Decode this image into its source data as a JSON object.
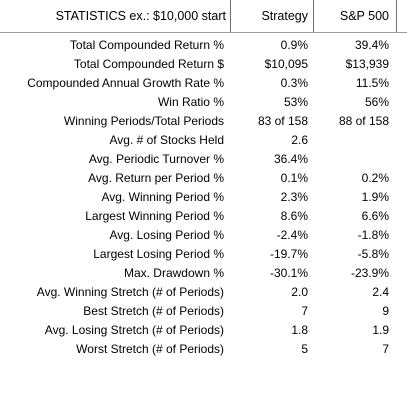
{
  "header": {
    "label": "STATISTICS  ex.: $10,000 start",
    "strategy": "Strategy",
    "sp500": "S&P 500"
  },
  "rows": [
    {
      "label": "Total Compounded Return %",
      "strategy": "0.9%",
      "sp500": "39.4%"
    },
    {
      "label": "Total Compounded Return $",
      "strategy": "$10,095",
      "sp500": "$13,939"
    },
    {
      "label": "Compounded Annual Growth Rate %",
      "strategy": "0.3%",
      "sp500": "11.5%"
    },
    {
      "label": "Win Ratio %",
      "strategy": "53%",
      "sp500": "56%"
    },
    {
      "label": "Winning Periods/Total Periods",
      "strategy": "83 of 158",
      "sp500": "88 of 158"
    },
    {
      "label": "Avg. # of Stocks Held",
      "strategy": "2.6",
      "sp500": ""
    },
    {
      "label": "Avg. Periodic Turnover %",
      "strategy": "36.4%",
      "sp500": ""
    },
    {
      "label": "Avg. Return per Period %",
      "strategy": "0.1%",
      "sp500": "0.2%"
    },
    {
      "label": "Avg. Winning Period %",
      "strategy": "2.3%",
      "sp500": "1.9%"
    },
    {
      "label": "Largest Winning Period %",
      "strategy": "8.6%",
      "sp500": "6.6%"
    },
    {
      "label": "Avg. Losing Period %",
      "strategy": "-2.4%",
      "sp500": "-1.8%"
    },
    {
      "label": "Largest Losing Period %",
      "strategy": "-19.7%",
      "sp500": "-5.8%"
    },
    {
      "label": "Max. Drawdown %",
      "strategy": "-30.1%",
      "sp500": "-23.9%"
    },
    {
      "label": "Avg. Winning Stretch (# of Periods)",
      "strategy": "2.0",
      "sp500": "2.4"
    },
    {
      "label": "Best Stretch (# of Periods)",
      "strategy": "7",
      "sp500": "9"
    },
    {
      "label": "Avg. Losing Stretch (# of Periods)",
      "strategy": "1.8",
      "sp500": "1.9"
    },
    {
      "label": "Worst Stretch (# of Periods)",
      "strategy": "5",
      "sp500": "7"
    }
  ]
}
